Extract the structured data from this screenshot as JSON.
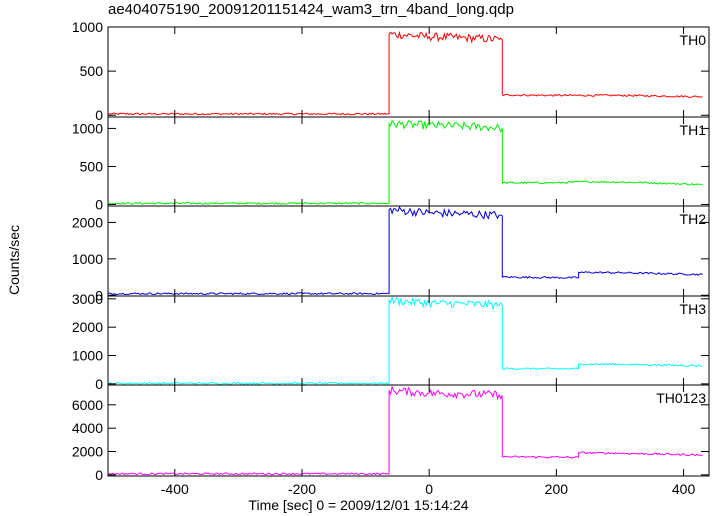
{
  "chart_data": {
    "type": "line",
    "title": "ae404075190_20091201151424_wam3_trn_4band_long.qdp",
    "xlabel": "Time [sec] 0 = 2009/12/01 15:14:24",
    "ylabel": "Counts/sec",
    "xlim": [
      -505,
      440
    ],
    "x_ticks": [
      -400,
      -200,
      0,
      200,
      400
    ],
    "grid": false,
    "panels": [
      {
        "name": "TH0",
        "color": "#ff0000",
        "ylim": [
          -20,
          1000
        ],
        "y_ticks": [
          0,
          500,
          1000
        ],
        "points": [
          [
            -505,
            15
          ],
          [
            -63,
            15
          ],
          [
            -63,
            920
          ],
          [
            0,
            890
          ],
          [
            50,
            880
          ],
          [
            110,
            860
          ],
          [
            115,
            850
          ],
          [
            115,
            230
          ],
          [
            200,
            225
          ],
          [
            300,
            225
          ],
          [
            430,
            210
          ]
        ]
      },
      {
        "name": "TH1",
        "color": "#00ee00",
        "ylim": [
          -20,
          1150
        ],
        "y_ticks": [
          0,
          500,
          1000
        ],
        "points": [
          [
            -505,
            15
          ],
          [
            -63,
            15
          ],
          [
            -63,
            1060
          ],
          [
            0,
            1040
          ],
          [
            50,
            1030
          ],
          [
            110,
            1010
          ],
          [
            115,
            1000
          ],
          [
            115,
            285
          ],
          [
            200,
            285
          ],
          [
            250,
            300
          ],
          [
            330,
            290
          ],
          [
            430,
            260
          ]
        ]
      },
      {
        "name": "TH2",
        "color": "#0000dd",
        "ylim": [
          -20,
          2450
        ],
        "y_ticks": [
          0,
          1000,
          2000
        ],
        "points": [
          [
            -505,
            45
          ],
          [
            -63,
            45
          ],
          [
            -63,
            2350
          ],
          [
            0,
            2260
          ],
          [
            50,
            2240
          ],
          [
            110,
            2200
          ],
          [
            115,
            2180
          ],
          [
            115,
            500
          ],
          [
            235,
            480
          ],
          [
            235,
            630
          ],
          [
            300,
            620
          ],
          [
            430,
            570
          ]
        ]
      },
      {
        "name": "TH3",
        "color": "#00ffff",
        "ylim": [
          -40,
          3100
        ],
        "y_ticks": [
          0,
          1000,
          2000,
          3000
        ],
        "points": [
          [
            -505,
            20
          ],
          [
            -63,
            20
          ],
          [
            -63,
            2950
          ],
          [
            0,
            2850
          ],
          [
            50,
            2830
          ],
          [
            110,
            2780
          ],
          [
            115,
            2750
          ],
          [
            115,
            540
          ],
          [
            235,
            530
          ],
          [
            235,
            700
          ],
          [
            300,
            690
          ],
          [
            430,
            640
          ]
        ]
      },
      {
        "name": "TH0123",
        "color": "#ff00ff",
        "ylim": [
          -100,
          7700
        ],
        "y_ticks": [
          0,
          2000,
          4000,
          6000
        ],
        "points": [
          [
            -505,
            90
          ],
          [
            -63,
            90
          ],
          [
            -63,
            7250
          ],
          [
            0,
            7000
          ],
          [
            50,
            6950
          ],
          [
            110,
            6850
          ],
          [
            115,
            6800
          ],
          [
            115,
            1550
          ],
          [
            235,
            1500
          ],
          [
            235,
            1900
          ],
          [
            300,
            1850
          ],
          [
            430,
            1700
          ]
        ]
      }
    ]
  }
}
